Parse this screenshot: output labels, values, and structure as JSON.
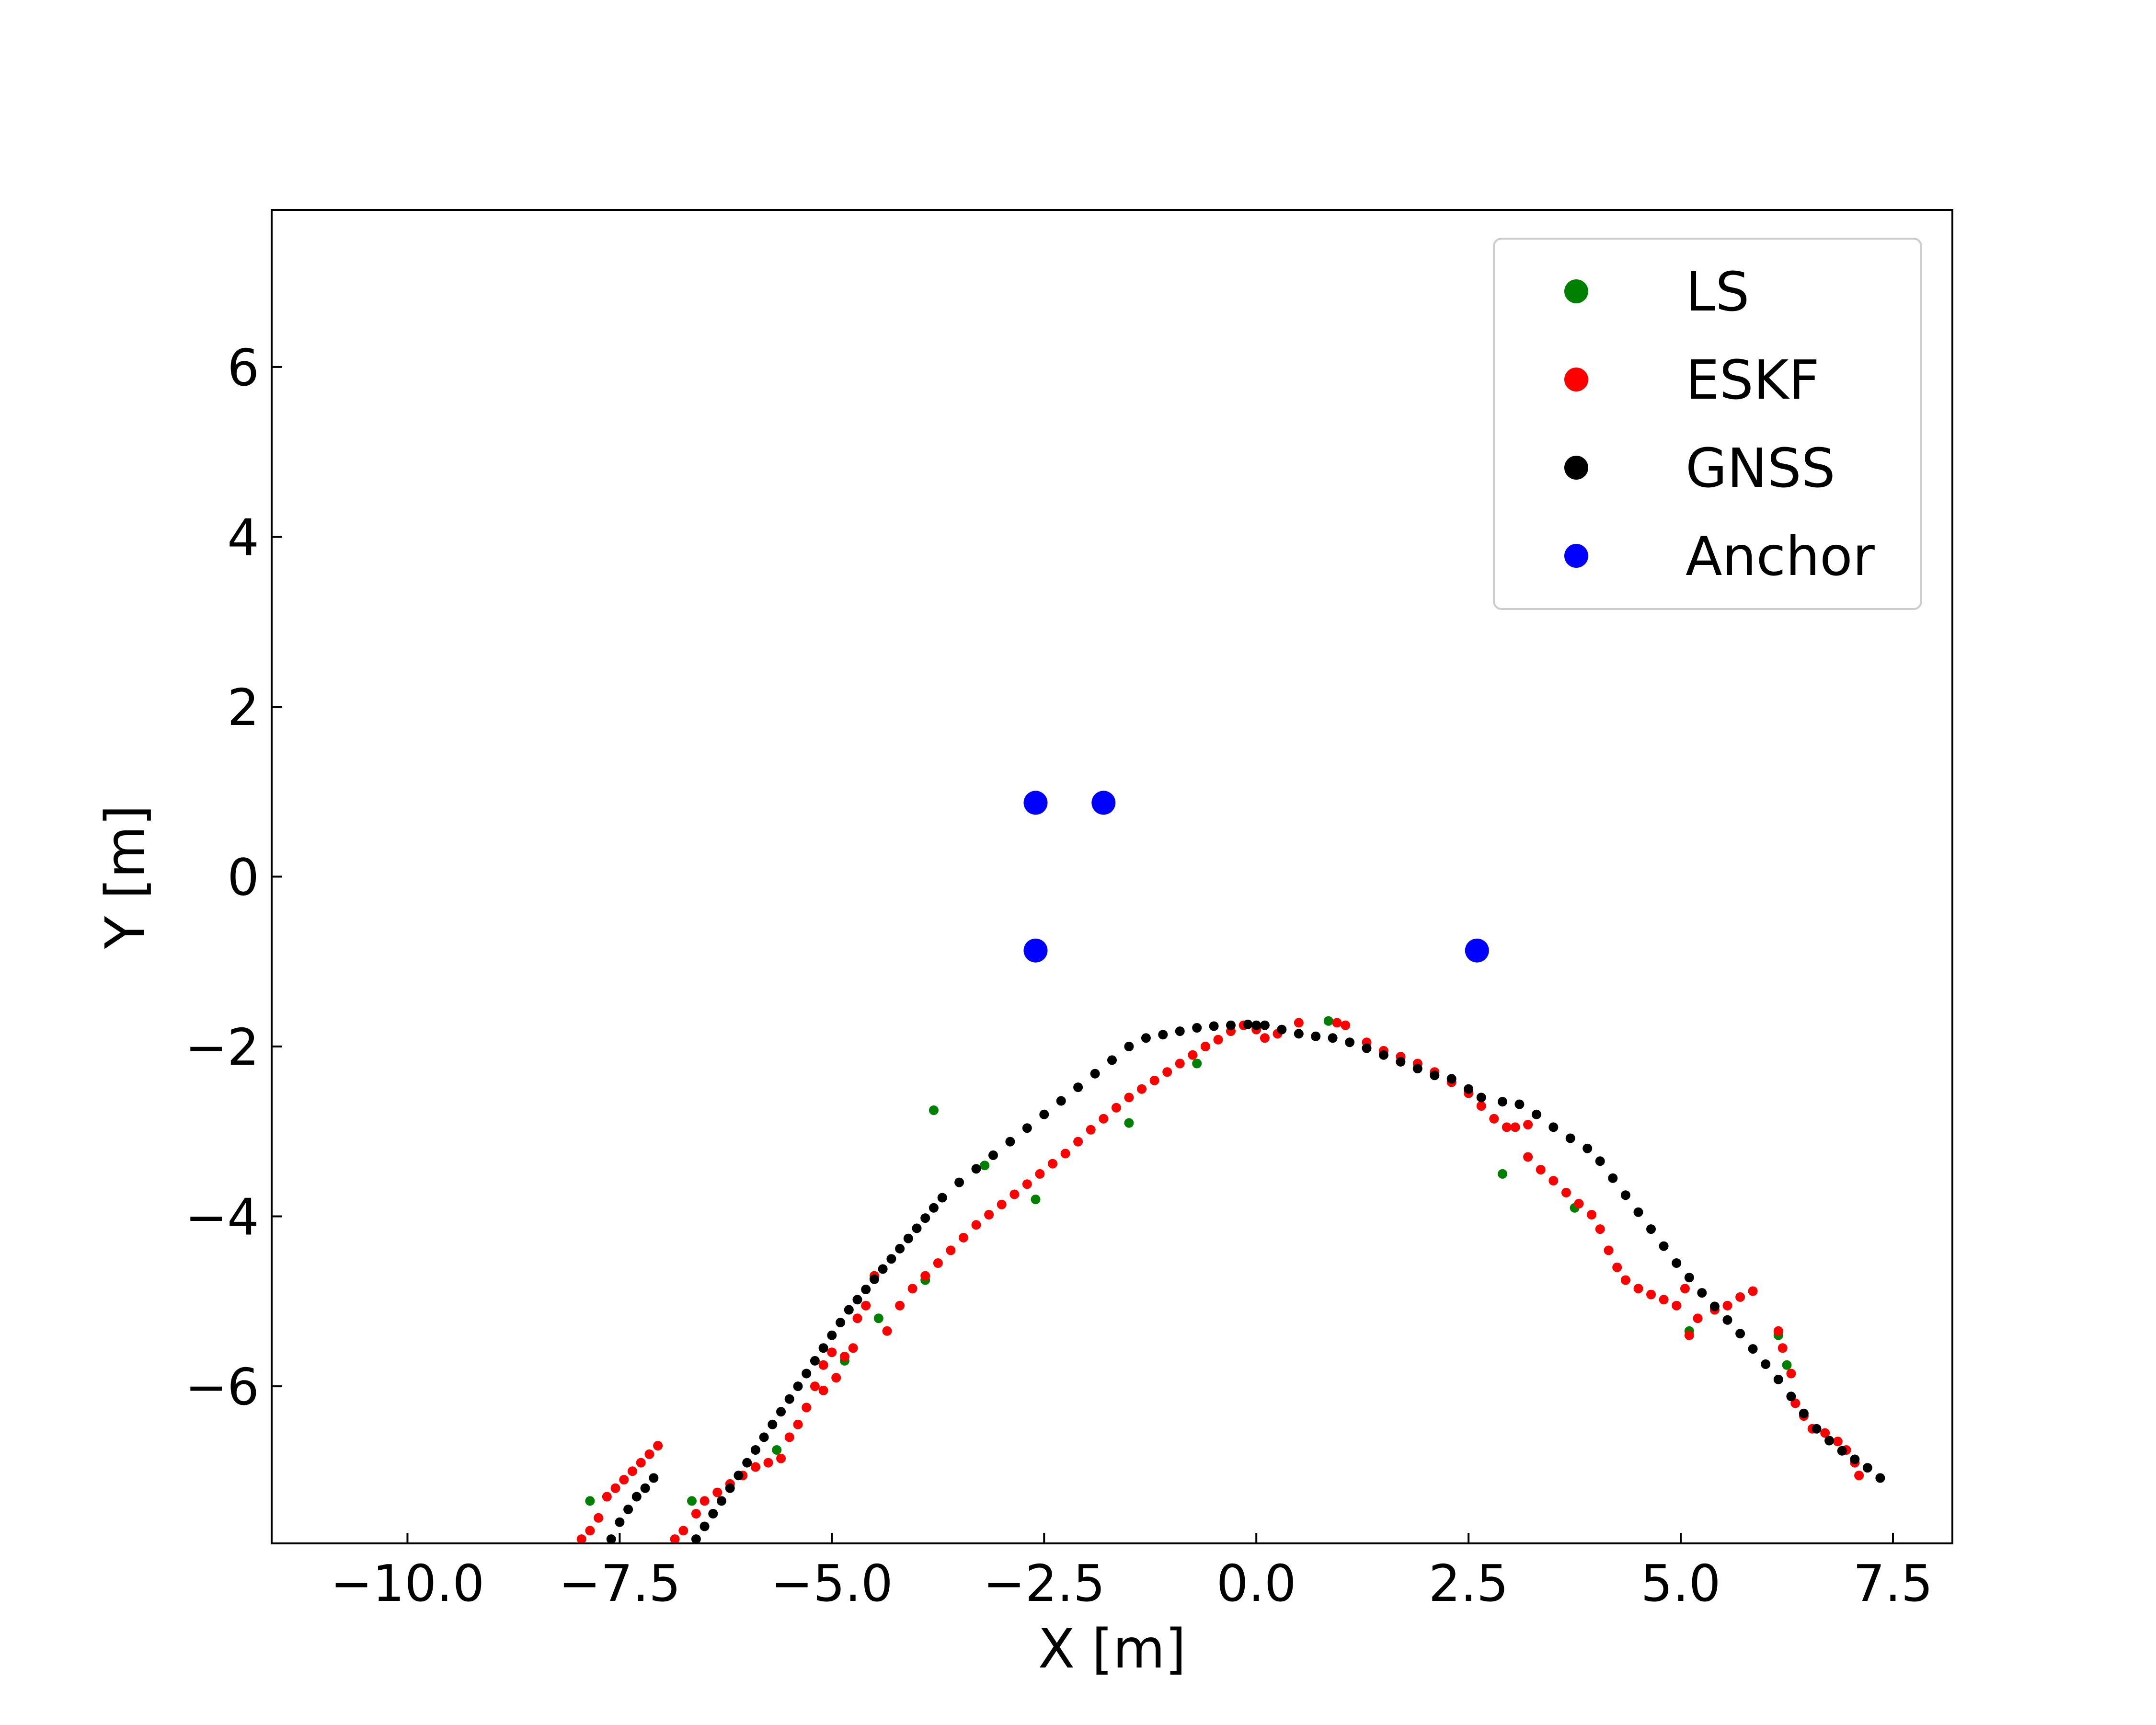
{
  "chart_data": {
    "type": "scatter",
    "xlabel": "X [m]",
    "ylabel": "Y [m]",
    "xlim": [
      -11.6,
      8.2
    ],
    "ylim": [
      -7.85,
      7.85
    ],
    "xticks": [
      {
        "value": -10.0,
        "label": "−10.0"
      },
      {
        "value": -7.5,
        "label": "−7.5"
      },
      {
        "value": -5.0,
        "label": "−5.0"
      },
      {
        "value": -2.5,
        "label": "−2.5"
      },
      {
        "value": 0.0,
        "label": "0.0"
      },
      {
        "value": 2.5,
        "label": "2.5"
      },
      {
        "value": 5.0,
        "label": "5.0"
      },
      {
        "value": 7.5,
        "label": "7.5"
      }
    ],
    "yticks": [
      {
        "value": -6,
        "label": "−6"
      },
      {
        "value": -4,
        "label": "−4"
      },
      {
        "value": -2,
        "label": "−2"
      },
      {
        "value": 0,
        "label": "0"
      },
      {
        "value": 2,
        "label": "2"
      },
      {
        "value": 4,
        "label": "4"
      },
      {
        "value": 6,
        "label": "6"
      }
    ],
    "grid": false,
    "legend_position": "top-right",
    "series": [
      {
        "name": "LS",
        "color": "#008000",
        "points": [
          [
            -7.85,
            -7.35
          ],
          [
            -6.65,
            -7.35
          ],
          [
            -5.65,
            -6.75
          ],
          [
            -4.85,
            -5.7
          ],
          [
            -4.45,
            -5.2
          ],
          [
            -3.9,
            -4.75
          ],
          [
            -3.8,
            -2.75
          ],
          [
            -3.2,
            -3.4
          ],
          [
            -2.6,
            -3.8
          ],
          [
            -1.5,
            -2.9
          ],
          [
            -0.7,
            -2.2
          ],
          [
            0.85,
            -1.7
          ],
          [
            2.9,
            -3.5
          ],
          [
            3.75,
            -3.9
          ],
          [
            5.1,
            -5.35
          ],
          [
            6.15,
            -5.4
          ],
          [
            6.25,
            -5.75
          ]
        ]
      },
      {
        "name": "ESKF",
        "color": "#ff0000",
        "points": [
          [
            -7.95,
            -7.8
          ],
          [
            -7.85,
            -7.7
          ],
          [
            -7.75,
            -7.55
          ],
          [
            -7.65,
            -7.3
          ],
          [
            -7.55,
            -7.2
          ],
          [
            -7.45,
            -7.1
          ],
          [
            -7.35,
            -7.0
          ],
          [
            -7.25,
            -6.9
          ],
          [
            -7.15,
            -6.8
          ],
          [
            -7.05,
            -6.7
          ],
          [
            -6.85,
            -7.8
          ],
          [
            -6.75,
            -7.7
          ],
          [
            -6.6,
            -7.5
          ],
          [
            -6.5,
            -7.35
          ],
          [
            -6.35,
            -7.25
          ],
          [
            -6.2,
            -7.15
          ],
          [
            -6.05,
            -7.05
          ],
          [
            -5.9,
            -6.95
          ],
          [
            -5.75,
            -6.9
          ],
          [
            -5.6,
            -6.85
          ],
          [
            -5.5,
            -6.6
          ],
          [
            -5.4,
            -6.45
          ],
          [
            -5.3,
            -6.25
          ],
          [
            -5.2,
            -6.0
          ],
          [
            -5.1,
            -5.75
          ],
          [
            -5.0,
            -5.6
          ],
          [
            -4.85,
            -5.65
          ],
          [
            -4.7,
            -5.2
          ],
          [
            -4.6,
            -5.05
          ],
          [
            -4.5,
            -4.7
          ],
          [
            -5.1,
            -6.05
          ],
          [
            -4.95,
            -5.9
          ],
          [
            -4.75,
            -5.55
          ],
          [
            -4.35,
            -5.35
          ],
          [
            -4.2,
            -5.05
          ],
          [
            -4.05,
            -4.85
          ],
          [
            -3.9,
            -4.7
          ],
          [
            -3.75,
            -4.55
          ],
          [
            -3.6,
            -4.4
          ],
          [
            -3.45,
            -4.25
          ],
          [
            -3.3,
            -4.1
          ],
          [
            -3.15,
            -3.98
          ],
          [
            -3.0,
            -3.86
          ],
          [
            -2.85,
            -3.74
          ],
          [
            -2.7,
            -3.62
          ],
          [
            -2.55,
            -3.5
          ],
          [
            -2.4,
            -3.38
          ],
          [
            -2.25,
            -3.26
          ],
          [
            -2.1,
            -3.12
          ],
          [
            -1.95,
            -2.98
          ],
          [
            -1.8,
            -2.85
          ],
          [
            -1.65,
            -2.72
          ],
          [
            -1.5,
            -2.6
          ],
          [
            -1.35,
            -2.5
          ],
          [
            -1.2,
            -2.4
          ],
          [
            -1.05,
            -2.3
          ],
          [
            -0.9,
            -2.2
          ],
          [
            -0.75,
            -2.1
          ],
          [
            -0.6,
            -2.0
          ],
          [
            -0.45,
            -1.92
          ],
          [
            -0.3,
            -1.82
          ],
          [
            -0.15,
            -1.75
          ],
          [
            0.0,
            -1.8
          ],
          [
            0.1,
            -1.9
          ],
          [
            0.25,
            -1.85
          ],
          [
            0.5,
            -1.72
          ],
          [
            0.95,
            -1.72
          ],
          [
            1.05,
            -1.75
          ],
          [
            1.3,
            -1.95
          ],
          [
            1.5,
            -2.05
          ],
          [
            1.7,
            -2.12
          ],
          [
            1.9,
            -2.2
          ],
          [
            2.1,
            -2.3
          ],
          [
            2.3,
            -2.42
          ],
          [
            2.5,
            -2.55
          ],
          [
            2.65,
            -2.7
          ],
          [
            2.8,
            -2.85
          ],
          [
            2.95,
            -2.95
          ],
          [
            3.05,
            -2.95
          ],
          [
            3.2,
            -2.92
          ],
          [
            3.2,
            -3.3
          ],
          [
            3.35,
            -3.45
          ],
          [
            3.5,
            -3.58
          ],
          [
            3.65,
            -3.72
          ],
          [
            3.8,
            -3.85
          ],
          [
            3.95,
            -3.98
          ],
          [
            4.05,
            -4.15
          ],
          [
            4.15,
            -4.4
          ],
          [
            4.25,
            -4.6
          ],
          [
            4.35,
            -4.75
          ],
          [
            4.5,
            -4.85
          ],
          [
            4.65,
            -4.92
          ],
          [
            4.8,
            -4.98
          ],
          [
            4.95,
            -5.05
          ],
          [
            5.05,
            -4.85
          ],
          [
            5.1,
            -5.4
          ],
          [
            5.2,
            -5.2
          ],
          [
            5.4,
            -5.1
          ],
          [
            5.55,
            -5.05
          ],
          [
            5.7,
            -4.95
          ],
          [
            5.85,
            -4.88
          ],
          [
            6.15,
            -5.35
          ],
          [
            6.2,
            -5.55
          ],
          [
            6.3,
            -5.85
          ],
          [
            6.35,
            -6.2
          ],
          [
            6.45,
            -6.35
          ],
          [
            6.55,
            -6.5
          ],
          [
            6.7,
            -6.55
          ],
          [
            6.85,
            -6.65
          ],
          [
            6.95,
            -6.75
          ],
          [
            7.05,
            -6.9
          ],
          [
            7.1,
            -7.05
          ]
        ]
      },
      {
        "name": "GNSS",
        "color": "#000000",
        "points": [
          [
            -7.6,
            -7.8
          ],
          [
            -7.5,
            -7.6
          ],
          [
            -7.4,
            -7.45
          ],
          [
            -7.3,
            -7.3
          ],
          [
            -7.2,
            -7.2
          ],
          [
            -7.1,
            -7.08
          ],
          [
            -6.6,
            -7.8
          ],
          [
            -6.5,
            -7.65
          ],
          [
            -6.4,
            -7.5
          ],
          [
            -6.3,
            -7.35
          ],
          [
            -6.2,
            -7.2
          ],
          [
            -6.1,
            -7.05
          ],
          [
            -6.0,
            -6.9
          ],
          [
            -5.9,
            -6.75
          ],
          [
            -5.8,
            -6.6
          ],
          [
            -5.7,
            -6.45
          ],
          [
            -5.6,
            -6.3
          ],
          [
            -5.5,
            -6.15
          ],
          [
            -5.4,
            -6.0
          ],
          [
            -5.3,
            -5.85
          ],
          [
            -5.2,
            -5.7
          ],
          [
            -5.1,
            -5.55
          ],
          [
            -5.0,
            -5.4
          ],
          [
            -4.9,
            -5.25
          ],
          [
            -4.8,
            -5.1
          ],
          [
            -4.7,
            -4.98
          ],
          [
            -4.6,
            -4.86
          ],
          [
            -4.5,
            -4.74
          ],
          [
            -4.4,
            -4.62
          ],
          [
            -4.3,
            -4.5
          ],
          [
            -4.2,
            -4.38
          ],
          [
            -4.1,
            -4.26
          ],
          [
            -4.0,
            -4.14
          ],
          [
            -3.9,
            -4.02
          ],
          [
            -3.8,
            -3.9
          ],
          [
            -3.7,
            -3.78
          ],
          [
            -3.5,
            -3.6
          ],
          [
            -3.3,
            -3.44
          ],
          [
            -3.1,
            -3.28
          ],
          [
            -2.9,
            -3.12
          ],
          [
            -2.7,
            -2.96
          ],
          [
            -2.5,
            -2.8
          ],
          [
            -2.3,
            -2.64
          ],
          [
            -2.1,
            -2.48
          ],
          [
            -1.9,
            -2.32
          ],
          [
            -1.7,
            -2.16
          ],
          [
            -1.5,
            -2.0
          ],
          [
            -1.3,
            -1.9
          ],
          [
            -1.1,
            -1.86
          ],
          [
            -0.9,
            -1.82
          ],
          [
            -0.7,
            -1.78
          ],
          [
            -0.5,
            -1.76
          ],
          [
            -0.3,
            -1.75
          ],
          [
            -0.1,
            -1.74
          ],
          [
            0.0,
            -1.75
          ],
          [
            0.1,
            -1.75
          ],
          [
            0.3,
            -1.8
          ],
          [
            0.5,
            -1.85
          ],
          [
            0.7,
            -1.88
          ],
          [
            0.9,
            -1.9
          ],
          [
            1.1,
            -1.95
          ],
          [
            1.3,
            -2.02
          ],
          [
            1.5,
            -2.1
          ],
          [
            1.7,
            -2.18
          ],
          [
            1.9,
            -2.26
          ],
          [
            2.1,
            -2.34
          ],
          [
            2.3,
            -2.38
          ],
          [
            2.5,
            -2.5
          ],
          [
            2.65,
            -2.6
          ],
          [
            2.9,
            -2.65
          ],
          [
            3.1,
            -2.68
          ],
          [
            3.3,
            -2.8
          ],
          [
            3.5,
            -2.95
          ],
          [
            3.7,
            -3.08
          ],
          [
            3.9,
            -3.2
          ],
          [
            4.05,
            -3.35
          ],
          [
            4.2,
            -3.55
          ],
          [
            4.35,
            -3.75
          ],
          [
            4.5,
            -3.95
          ],
          [
            4.65,
            -4.15
          ],
          [
            4.8,
            -4.35
          ],
          [
            4.95,
            -4.55
          ],
          [
            5.1,
            -4.72
          ],
          [
            5.25,
            -4.9
          ],
          [
            5.4,
            -5.06
          ],
          [
            5.55,
            -5.22
          ],
          [
            5.7,
            -5.38
          ],
          [
            5.85,
            -5.56
          ],
          [
            6.0,
            -5.74
          ],
          [
            6.15,
            -5.92
          ],
          [
            6.3,
            -6.12
          ],
          [
            6.45,
            -6.32
          ],
          [
            6.6,
            -6.5
          ],
          [
            6.75,
            -6.64
          ],
          [
            6.9,
            -6.76
          ],
          [
            7.05,
            -6.86
          ],
          [
            7.2,
            -6.96
          ],
          [
            7.35,
            -7.08
          ]
        ]
      },
      {
        "name": "Anchor",
        "color": "#0000ff",
        "points": [
          [
            -2.6,
            0.87
          ],
          [
            -1.8,
            0.87
          ],
          [
            -2.6,
            -0.87
          ],
          [
            2.6,
            -0.87
          ]
        ]
      }
    ]
  }
}
